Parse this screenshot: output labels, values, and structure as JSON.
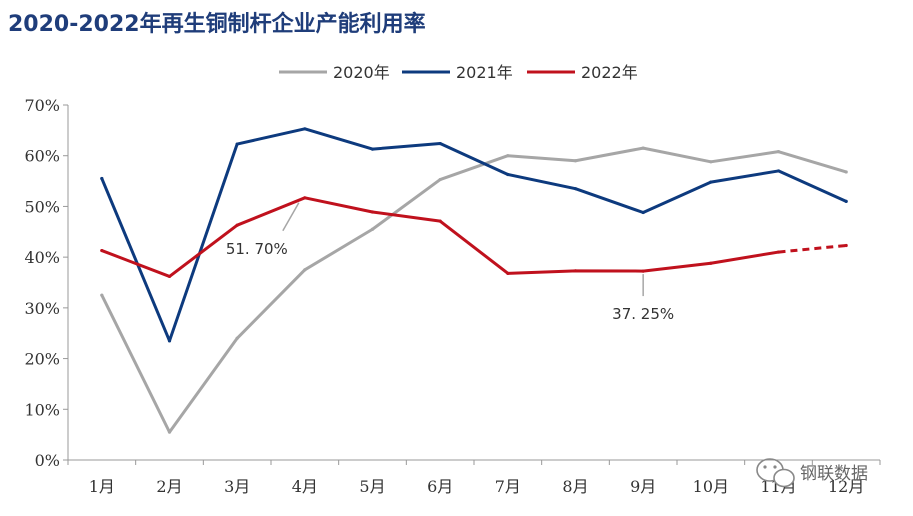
{
  "chart_data": {
    "type": "line",
    "title": "2020-2022年再生铜制杆企业产能利用率",
    "categories": [
      "1月",
      "2月",
      "3月",
      "4月",
      "5月",
      "6月",
      "7月",
      "8月",
      "9月",
      "10月",
      "11月",
      "12月"
    ],
    "ylim": [
      0,
      70
    ],
    "yticks": [
      "0%",
      "10%",
      "20%",
      "30%",
      "40%",
      "50%",
      "60%",
      "70%"
    ],
    "grid": false,
    "legend_position": "top",
    "series": [
      {
        "name": "2020年",
        "color": "#a6a6a6",
        "values": [
          32.5,
          5.5,
          24,
          37.5,
          45.5,
          55.3,
          60,
          59,
          61.5,
          58.8,
          60.8,
          56.8
        ]
      },
      {
        "name": "2021年",
        "color": "#0d3a7e",
        "values": [
          55.5,
          23.5,
          62.3,
          65.3,
          61.3,
          62.4,
          56.3,
          53.5,
          48.8,
          54.8,
          57,
          51
        ]
      },
      {
        "name": "2022年",
        "color": "#c0111d",
        "values": [
          41.3,
          36.2,
          46.3,
          51.7,
          48.9,
          47.1,
          36.8,
          37.3,
          37.25,
          38.8,
          41,
          42.3
        ],
        "dashed_from_index": 10
      }
    ],
    "annotations": [
      {
        "text": "51. 70%",
        "category": "4月",
        "series": "2022年",
        "value": 51.7
      },
      {
        "text": "37. 25%",
        "category": "9月",
        "series": "2022年",
        "value": 37.25
      }
    ]
  },
  "watermark": {
    "text": "钢联数据",
    "icon": "wechat-icon"
  }
}
